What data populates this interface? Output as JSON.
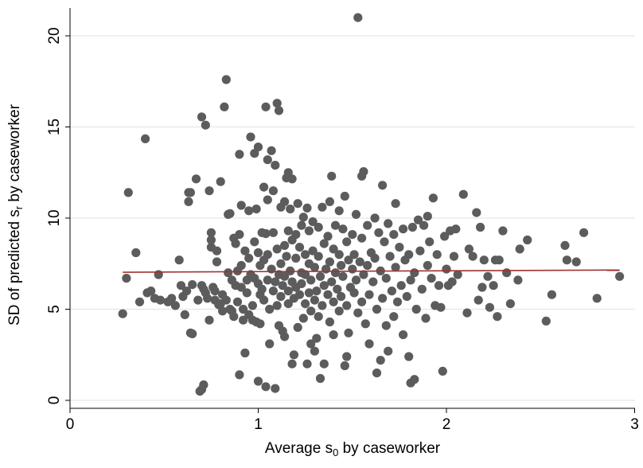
{
  "chart_data": {
    "type": "scatter",
    "xlabel": "Average s",
    "xlabel_sub": "0",
    "xlabel_tail": " by caseworker",
    "ylabel": "SD of predicted s",
    "ylabel_sub": "r",
    "ylabel_tail": " by caseworker",
    "xlim": [
      0,
      3
    ],
    "ylim": [
      0,
      21
    ],
    "xticks": [
      0,
      1,
      2,
      3
    ],
    "yticks": [
      0,
      5,
      10,
      15,
      20
    ],
    "grid": "horizontal",
    "colors": {
      "points": "#5c5c5c",
      "fit_line": "#a03232",
      "grid": "#e6e6e6",
      "axis": "#000000"
    },
    "fit_line": {
      "x": [
        0.28,
        2.92
      ],
      "y": [
        7.03,
        7.15
      ]
    },
    "points": [
      [
        0.28,
        4.75
      ],
      [
        0.3,
        6.7
      ],
      [
        0.31,
        11.4
      ],
      [
        0.35,
        8.1
      ],
      [
        0.37,
        5.4
      ],
      [
        0.4,
        14.35
      ],
      [
        0.41,
        5.9
      ],
      [
        0.43,
        6.0
      ],
      [
        0.45,
        5.6
      ],
      [
        0.47,
        6.9
      ],
      [
        0.48,
        5.5
      ],
      [
        0.52,
        5.4
      ],
      [
        0.54,
        5.6
      ],
      [
        0.56,
        5.2
      ],
      [
        0.58,
        7.7
      ],
      [
        0.59,
        6.3
      ],
      [
        0.6,
        5.7
      ],
      [
        0.61,
        4.7
      ],
      [
        0.62,
        6.0
      ],
      [
        0.63,
        11.4
      ],
      [
        0.63,
        10.9
      ],
      [
        0.64,
        11.4
      ],
      [
        0.64,
        3.7
      ],
      [
        0.65,
        3.65
      ],
      [
        0.65,
        6.35
      ],
      [
        0.67,
        12.15
      ],
      [
        0.68,
        5.5
      ],
      [
        0.69,
        0.5
      ],
      [
        0.7,
        0.6
      ],
      [
        0.7,
        6.3
      ],
      [
        0.7,
        15.55
      ],
      [
        0.71,
        0.85
      ],
      [
        0.71,
        6.1
      ],
      [
        0.72,
        15.1
      ],
      [
        0.72,
        5.9
      ],
      [
        0.73,
        5.6
      ],
      [
        0.74,
        11.5
      ],
      [
        0.74,
        4.4
      ],
      [
        0.75,
        9.2
      ],
      [
        0.75,
        8.8
      ],
      [
        0.75,
        8.4
      ],
      [
        0.76,
        6.2
      ],
      [
        0.77,
        6.0
      ],
      [
        0.77,
        5.5
      ],
      [
        0.78,
        8.2
      ],
      [
        0.78,
        7.6
      ],
      [
        0.79,
        5.25
      ],
      [
        0.8,
        12.0
      ],
      [
        0.8,
        5.3
      ],
      [
        0.81,
        4.9
      ],
      [
        0.81,
        5.8
      ],
      [
        0.82,
        16.1
      ],
      [
        0.83,
        17.6
      ],
      [
        0.83,
        5.5
      ],
      [
        0.84,
        10.2
      ],
      [
        0.84,
        7.0
      ],
      [
        0.85,
        10.25
      ],
      [
        0.85,
        5.0
      ],
      [
        0.86,
        6.6
      ],
      [
        0.86,
        4.9
      ],
      [
        0.87,
        8.9
      ],
      [
        0.87,
        4.6
      ],
      [
        0.88,
        8.6
      ],
      [
        0.88,
        6.3
      ],
      [
        0.89,
        7.1
      ],
      [
        0.89,
        5.4
      ],
      [
        0.9,
        13.5
      ],
      [
        0.9,
        9.1
      ],
      [
        0.9,
        1.4
      ],
      [
        0.91,
        10.7
      ],
      [
        0.91,
        7.4
      ],
      [
        0.91,
        6.2
      ],
      [
        0.92,
        5.0
      ],
      [
        0.92,
        4.4
      ],
      [
        0.93,
        2.6
      ],
      [
        0.93,
        8.2
      ],
      [
        0.94,
        6.6
      ],
      [
        0.94,
        5.9
      ],
      [
        0.95,
        10.4
      ],
      [
        0.95,
        7.8
      ],
      [
        0.95,
        4.7
      ],
      [
        0.96,
        14.45
      ],
      [
        0.96,
        6.9
      ],
      [
        0.97,
        5.2
      ],
      [
        0.97,
        4.4
      ],
      [
        0.98,
        13.55
      ],
      [
        0.98,
        8.7
      ],
      [
        0.98,
        6.7
      ],
      [
        0.99,
        10.5
      ],
      [
        0.99,
        4.3
      ],
      [
        1.0,
        13.9
      ],
      [
        1.0,
        8.1
      ],
      [
        1.0,
        6.4
      ],
      [
        1.0,
        1.05
      ],
      [
        1.01,
        5.8
      ],
      [
        1.01,
        4.2
      ],
      [
        1.01,
        7.4
      ],
      [
        1.02,
        9.2
      ],
      [
        1.02,
        6.1
      ],
      [
        1.03,
        11.7
      ],
      [
        1.03,
        7.7
      ],
      [
        1.03,
        5.5
      ],
      [
        1.04,
        16.1
      ],
      [
        1.04,
        0.75
      ],
      [
        1.04,
        9.15
      ],
      [
        1.05,
        11.0
      ],
      [
        1.05,
        13.2
      ],
      [
        1.05,
        8.0
      ],
      [
        1.05,
        6.6
      ],
      [
        1.06,
        5.0
      ],
      [
        1.06,
        3.1
      ],
      [
        1.07,
        13.7
      ],
      [
        1.07,
        7.2
      ],
      [
        1.08,
        11.5
      ],
      [
        1.08,
        9.2
      ],
      [
        1.08,
        6.0
      ],
      [
        1.09,
        12.9
      ],
      [
        1.09,
        6.5
      ],
      [
        1.09,
        0.65
      ],
      [
        1.1,
        16.3
      ],
      [
        1.1,
        5.2
      ],
      [
        1.1,
        8.3
      ],
      [
        1.11,
        15.9
      ],
      [
        1.11,
        6.9
      ],
      [
        1.11,
        4.1
      ],
      [
        1.12,
        10.6
      ],
      [
        1.12,
        7.5
      ],
      [
        1.12,
        5.7
      ],
      [
        1.13,
        6.3
      ],
      [
        1.13,
        3.8
      ],
      [
        1.14,
        10.9
      ],
      [
        1.14,
        8.5
      ],
      [
        1.14,
        6.8
      ],
      [
        1.14,
        3.5
      ],
      [
        1.15,
        12.2
      ],
      [
        1.15,
        7.9
      ],
      [
        1.16,
        12.5
      ],
      [
        1.16,
        9.3
      ],
      [
        1.16,
        6.0
      ],
      [
        1.16,
        5.3
      ],
      [
        1.17,
        10.5
      ],
      [
        1.17,
        7.1
      ],
      [
        1.18,
        12.15
      ],
      [
        1.18,
        8.8
      ],
      [
        1.18,
        6.5
      ],
      [
        1.18,
        2.0
      ],
      [
        1.19,
        2.5
      ],
      [
        1.19,
        5.6
      ],
      [
        1.2,
        9.1
      ],
      [
        1.2,
        7.8
      ],
      [
        1.2,
        6.2
      ],
      [
        1.21,
        10.8
      ],
      [
        1.21,
        4.0
      ],
      [
        1.22,
        8.4
      ],
      [
        1.22,
        5.8
      ],
      [
        1.23,
        9.6
      ],
      [
        1.23,
        7.0
      ],
      [
        1.23,
        6.4
      ],
      [
        1.24,
        10.05
      ],
      [
        1.24,
        4.5
      ],
      [
        1.25,
        8.0
      ],
      [
        1.25,
        6.9
      ],
      [
        1.25,
        5.3
      ],
      [
        1.26,
        10.55
      ],
      [
        1.26,
        2.0
      ],
      [
        1.27,
        9.3
      ],
      [
        1.27,
        7.5
      ],
      [
        1.27,
        5.9
      ],
      [
        1.28,
        6.6
      ],
      [
        1.28,
        4.9
      ],
      [
        1.28,
        3.1
      ],
      [
        1.29,
        9.8
      ],
      [
        1.29,
        8.2
      ],
      [
        1.3,
        7.3
      ],
      [
        1.3,
        5.5
      ],
      [
        1.3,
        2.7
      ],
      [
        1.31,
        6.0
      ],
      [
        1.31,
        3.4
      ],
      [
        1.32,
        9.5
      ],
      [
        1.32,
        7.9
      ],
      [
        1.32,
        4.6
      ],
      [
        1.33,
        6.8
      ],
      [
        1.33,
        1.2
      ],
      [
        1.34,
        10.6
      ],
      [
        1.34,
        5.2
      ],
      [
        1.35,
        8.6
      ],
      [
        1.35,
        6.3
      ],
      [
        1.35,
        2.0
      ],
      [
        1.36,
        7.2
      ],
      [
        1.37,
        9.0
      ],
      [
        1.37,
        5.8
      ],
      [
        1.38,
        10.9
      ],
      [
        1.38,
        7.6
      ],
      [
        1.38,
        4.3
      ],
      [
        1.39,
        12.3
      ],
      [
        1.39,
        6.5
      ],
      [
        1.4,
        8.3
      ],
      [
        1.4,
        5.4
      ],
      [
        1.4,
        3.6
      ],
      [
        1.41,
        9.6
      ],
      [
        1.41,
        7.0
      ],
      [
        1.42,
        6.1
      ],
      [
        1.43,
        10.4
      ],
      [
        1.43,
        8.0
      ],
      [
        1.43,
        4.9
      ],
      [
        1.44,
        7.4
      ],
      [
        1.44,
        5.7
      ],
      [
        1.45,
        9.4
      ],
      [
        1.45,
        6.8
      ],
      [
        1.46,
        11.2
      ],
      [
        1.46,
        1.9
      ],
      [
        1.47,
        8.7
      ],
      [
        1.47,
        5.2
      ],
      [
        1.47,
        2.4
      ],
      [
        1.48,
        7.7
      ],
      [
        1.48,
        3.7
      ],
      [
        1.49,
        6.2
      ],
      [
        1.5,
        9.1
      ],
      [
        1.5,
        7.2
      ],
      [
        1.51,
        5.9
      ],
      [
        1.51,
        8.0
      ],
      [
        1.52,
        10.2
      ],
      [
        1.52,
        6.6
      ],
      [
        1.53,
        21.0
      ],
      [
        1.53,
        4.8
      ],
      [
        1.54,
        7.6
      ],
      [
        1.55,
        12.3
      ],
      [
        1.55,
        8.9
      ],
      [
        1.55,
        5.4
      ],
      [
        1.56,
        12.55
      ],
      [
        1.56,
        6.9
      ],
      [
        1.57,
        4.2
      ],
      [
        1.58,
        9.6
      ],
      [
        1.58,
        7.4
      ],
      [
        1.59,
        3.1
      ],
      [
        1.59,
        5.8
      ],
      [
        1.6,
        8.1
      ],
      [
        1.61,
        6.5
      ],
      [
        1.62,
        10.0
      ],
      [
        1.62,
        7.8
      ],
      [
        1.63,
        1.5
      ],
      [
        1.63,
        5.0
      ],
      [
        1.64,
        9.2
      ],
      [
        1.65,
        7.1
      ],
      [
        1.65,
        2.2
      ],
      [
        1.66,
        11.8
      ],
      [
        1.66,
        5.6
      ],
      [
        1.67,
        8.7
      ],
      [
        1.68,
        6.7
      ],
      [
        1.68,
        4.1
      ],
      [
        1.69,
        9.7
      ],
      [
        1.69,
        2.7
      ],
      [
        1.7,
        7.9
      ],
      [
        1.71,
        6.0
      ],
      [
        1.72,
        9.1
      ],
      [
        1.72,
        4.6
      ],
      [
        1.73,
        10.8
      ],
      [
        1.73,
        7.3
      ],
      [
        1.74,
        5.4
      ],
      [
        1.75,
        8.4
      ],
      [
        1.76,
        6.3
      ],
      [
        1.77,
        9.4
      ],
      [
        1.77,
        3.6
      ],
      [
        1.78,
        7.7
      ],
      [
        1.79,
        5.7
      ],
      [
        1.8,
        8.0
      ],
      [
        1.8,
        2.4
      ],
      [
        1.81,
        6.6
      ],
      [
        1.81,
        0.95
      ],
      [
        1.82,
        9.5
      ],
      [
        1.83,
        1.15
      ],
      [
        1.83,
        7.0
      ],
      [
        1.84,
        5.0
      ],
      [
        1.85,
        9.9
      ],
      [
        1.86,
        8.2
      ],
      [
        1.87,
        6.1
      ],
      [
        1.88,
        9.6
      ],
      [
        1.89,
        4.5
      ],
      [
        1.9,
        7.4
      ],
      [
        1.9,
        10.1
      ],
      [
        1.91,
        8.7
      ],
      [
        1.92,
        6.7
      ],
      [
        1.93,
        11.1
      ],
      [
        1.94,
        5.2
      ],
      [
        1.95,
        8.0
      ],
      [
        1.96,
        6.3
      ],
      [
        1.97,
        5.1
      ],
      [
        1.98,
        1.6
      ],
      [
        1.99,
        9.0
      ],
      [
        2.0,
        7.2
      ],
      [
        2.01,
        6.3
      ],
      [
        2.02,
        9.3
      ],
      [
        2.03,
        6.5
      ],
      [
        2.04,
        7.9
      ],
      [
        2.05,
        9.4
      ],
      [
        2.06,
        6.9
      ],
      [
        2.09,
        11.3
      ],
      [
        2.11,
        4.8
      ],
      [
        2.12,
        8.3
      ],
      [
        2.14,
        7.9
      ],
      [
        2.16,
        10.3
      ],
      [
        2.17,
        5.5
      ],
      [
        2.18,
        9.5
      ],
      [
        2.19,
        6.2
      ],
      [
        2.2,
        7.7
      ],
      [
        2.22,
        6.8
      ],
      [
        2.23,
        5.1
      ],
      [
        2.25,
        6.3
      ],
      [
        2.26,
        7.7
      ],
      [
        2.27,
        4.6
      ],
      [
        2.28,
        7.7
      ],
      [
        2.3,
        9.3
      ],
      [
        2.32,
        7.0
      ],
      [
        2.34,
        5.3
      ],
      [
        2.38,
        6.6
      ],
      [
        2.39,
        8.3
      ],
      [
        2.43,
        8.8
      ],
      [
        2.53,
        4.35
      ],
      [
        2.56,
        5.8
      ],
      [
        2.63,
        8.5
      ],
      [
        2.64,
        7.7
      ],
      [
        2.69,
        7.6
      ],
      [
        2.73,
        9.2
      ],
      [
        2.8,
        5.6
      ],
      [
        2.92,
        6.8
      ]
    ]
  }
}
